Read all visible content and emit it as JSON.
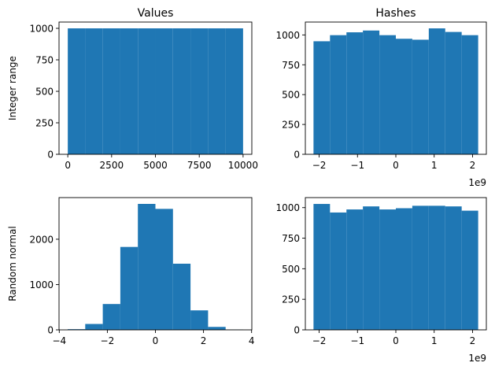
{
  "colors": {
    "bar": "#1f77b4",
    "axis": "#000000",
    "background": "#ffffff"
  },
  "chart_data": [
    {
      "type": "bar",
      "subtype": "histogram",
      "title": "Values",
      "ylabel": "Integer range",
      "xlabel": "",
      "bin_edges": [
        0,
        1000,
        2000,
        3000,
        4000,
        5000,
        6000,
        7000,
        8000,
        9000,
        10000
      ],
      "counts": [
        1000,
        1000,
        1000,
        1000,
        1000,
        1000,
        1000,
        1000,
        1000,
        1000
      ],
      "xlim": [
        -500,
        10499
      ],
      "ylim": [
        0,
        1050
      ],
      "xticks": [
        0,
        2500,
        5000,
        7500,
        10000
      ],
      "xtick_labels": [
        "0",
        "2500",
        "5000",
        "7500",
        "10000"
      ],
      "yticks": [
        0,
        250,
        500,
        750,
        1000
      ],
      "ytick_labels": [
        "0",
        "250",
        "500",
        "750",
        "1000"
      ],
      "offset_label": "",
      "grid": false
    },
    {
      "type": "bar",
      "subtype": "histogram",
      "title": "Hashes",
      "ylabel": "",
      "xlabel": "",
      "bin_edges": [
        -2.147,
        -1.717,
        -1.288,
        -0.859,
        -0.429,
        0.0,
        0.429,
        0.859,
        1.288,
        1.717,
        2.147
      ],
      "counts": [
        947,
        998,
        1022,
        1037,
        998,
        968,
        960,
        1055,
        1025,
        998
      ],
      "xlim": [
        -2.36,
        2.36
      ],
      "ylim": [
        0,
        1108
      ],
      "xticks": [
        -2,
        -1,
        0,
        1,
        2
      ],
      "xtick_labels": [
        "−2",
        "−1",
        "0",
        "1",
        "2"
      ],
      "yticks": [
        0,
        250,
        500,
        750,
        1000
      ],
      "ytick_labels": [
        "0",
        "250",
        "500",
        "750",
        "1000"
      ],
      "offset_label": "1e9",
      "grid": false
    },
    {
      "type": "bar",
      "subtype": "histogram",
      "title": "",
      "ylabel": "Random normal",
      "xlabel": "",
      "bin_edges": [
        -3.65,
        -2.92,
        -2.19,
        -1.46,
        -0.73,
        0.0,
        0.73,
        1.46,
        2.19,
        2.92,
        3.65
      ],
      "counts": [
        15,
        130,
        570,
        1830,
        2780,
        2670,
        1460,
        430,
        65,
        8
      ],
      "xlim": [
        -4.01,
        4.01
      ],
      "ylim": [
        0,
        2919
      ],
      "xticks": [
        -4,
        -2,
        0,
        2,
        4
      ],
      "xtick_labels": [
        "−4",
        "−2",
        "0",
        "2",
        "4"
      ],
      "yticks": [
        0,
        1000,
        2000
      ],
      "ytick_labels": [
        "0",
        "1000",
        "2000"
      ],
      "offset_label": "",
      "grid": false
    },
    {
      "type": "bar",
      "subtype": "histogram",
      "title": "",
      "ylabel": "",
      "xlabel": "",
      "bin_edges": [
        -2.147,
        -1.717,
        -1.288,
        -0.859,
        -0.429,
        0.0,
        0.429,
        0.859,
        1.288,
        1.717,
        2.147
      ],
      "counts": [
        1030,
        960,
        985,
        1010,
        985,
        995,
        1015,
        1015,
        1010,
        975
      ],
      "xlim": [
        -2.36,
        2.36
      ],
      "ylim": [
        0,
        1082
      ],
      "xticks": [
        -2,
        -1,
        0,
        1,
        2
      ],
      "xtick_labels": [
        "−2",
        "−1",
        "0",
        "1",
        "2"
      ],
      "yticks": [
        0,
        250,
        500,
        750,
        1000
      ],
      "ytick_labels": [
        "0",
        "250",
        "500",
        "750",
        "1000"
      ],
      "offset_label": "1e9",
      "grid": false
    }
  ]
}
